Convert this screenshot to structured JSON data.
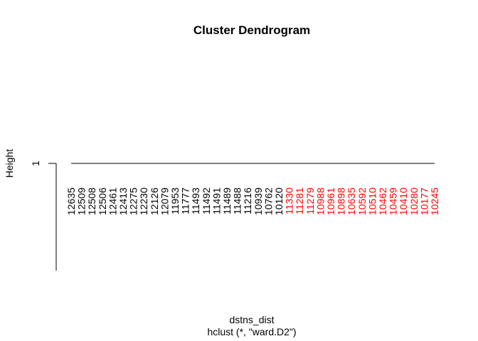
{
  "chart_data": {
    "type": "dendrogram",
    "title": "Cluster Dendrogram",
    "xlabel": "dstns_dist",
    "sub": "hclust (*, \"ward.D2\")",
    "ylabel": "Height",
    "y_ticks": [
      "1"
    ],
    "merge_height": 1,
    "leaves": [
      {
        "label": "12635",
        "color": "#000000"
      },
      {
        "label": "12509",
        "color": "#000000"
      },
      {
        "label": "12508",
        "color": "#000000"
      },
      {
        "label": "12506",
        "color": "#000000"
      },
      {
        "label": "12461",
        "color": "#000000"
      },
      {
        "label": "12413",
        "color": "#000000"
      },
      {
        "label": "12275",
        "color": "#000000"
      },
      {
        "label": "12230",
        "color": "#000000"
      },
      {
        "label": "12126",
        "color": "#000000"
      },
      {
        "label": "12079",
        "color": "#000000"
      },
      {
        "label": "11953",
        "color": "#000000"
      },
      {
        "label": "11777",
        "color": "#000000"
      },
      {
        "label": "11493",
        "color": "#000000"
      },
      {
        "label": "11492",
        "color": "#000000"
      },
      {
        "label": "11491",
        "color": "#000000"
      },
      {
        "label": "11489",
        "color": "#000000"
      },
      {
        "label": "11488",
        "color": "#000000"
      },
      {
        "label": "11216",
        "color": "#000000"
      },
      {
        "label": "10939",
        "color": "#000000"
      },
      {
        "label": "10762",
        "color": "#000000"
      },
      {
        "label": "10120",
        "color": "#000000"
      },
      {
        "label": "11330",
        "color": "#ff0000"
      },
      {
        "label": "11281",
        "color": "#ff0000"
      },
      {
        "label": "11279",
        "color": "#ff0000"
      },
      {
        "label": "10988",
        "color": "#ff0000"
      },
      {
        "label": "10961",
        "color": "#ff0000"
      },
      {
        "label": "10898",
        "color": "#ff0000"
      },
      {
        "label": "10635",
        "color": "#ff0000"
      },
      {
        "label": "10592",
        "color": "#ff0000"
      },
      {
        "label": "10510",
        "color": "#ff0000"
      },
      {
        "label": "10462",
        "color": "#ff0000"
      },
      {
        "label": "10459",
        "color": "#ff0000"
      },
      {
        "label": "10410",
        "color": "#ff0000"
      },
      {
        "label": "10280",
        "color": "#ff0000"
      },
      {
        "label": "10177",
        "color": "#ff0000"
      },
      {
        "label": "10245",
        "color": "#ff0000"
      }
    ]
  }
}
